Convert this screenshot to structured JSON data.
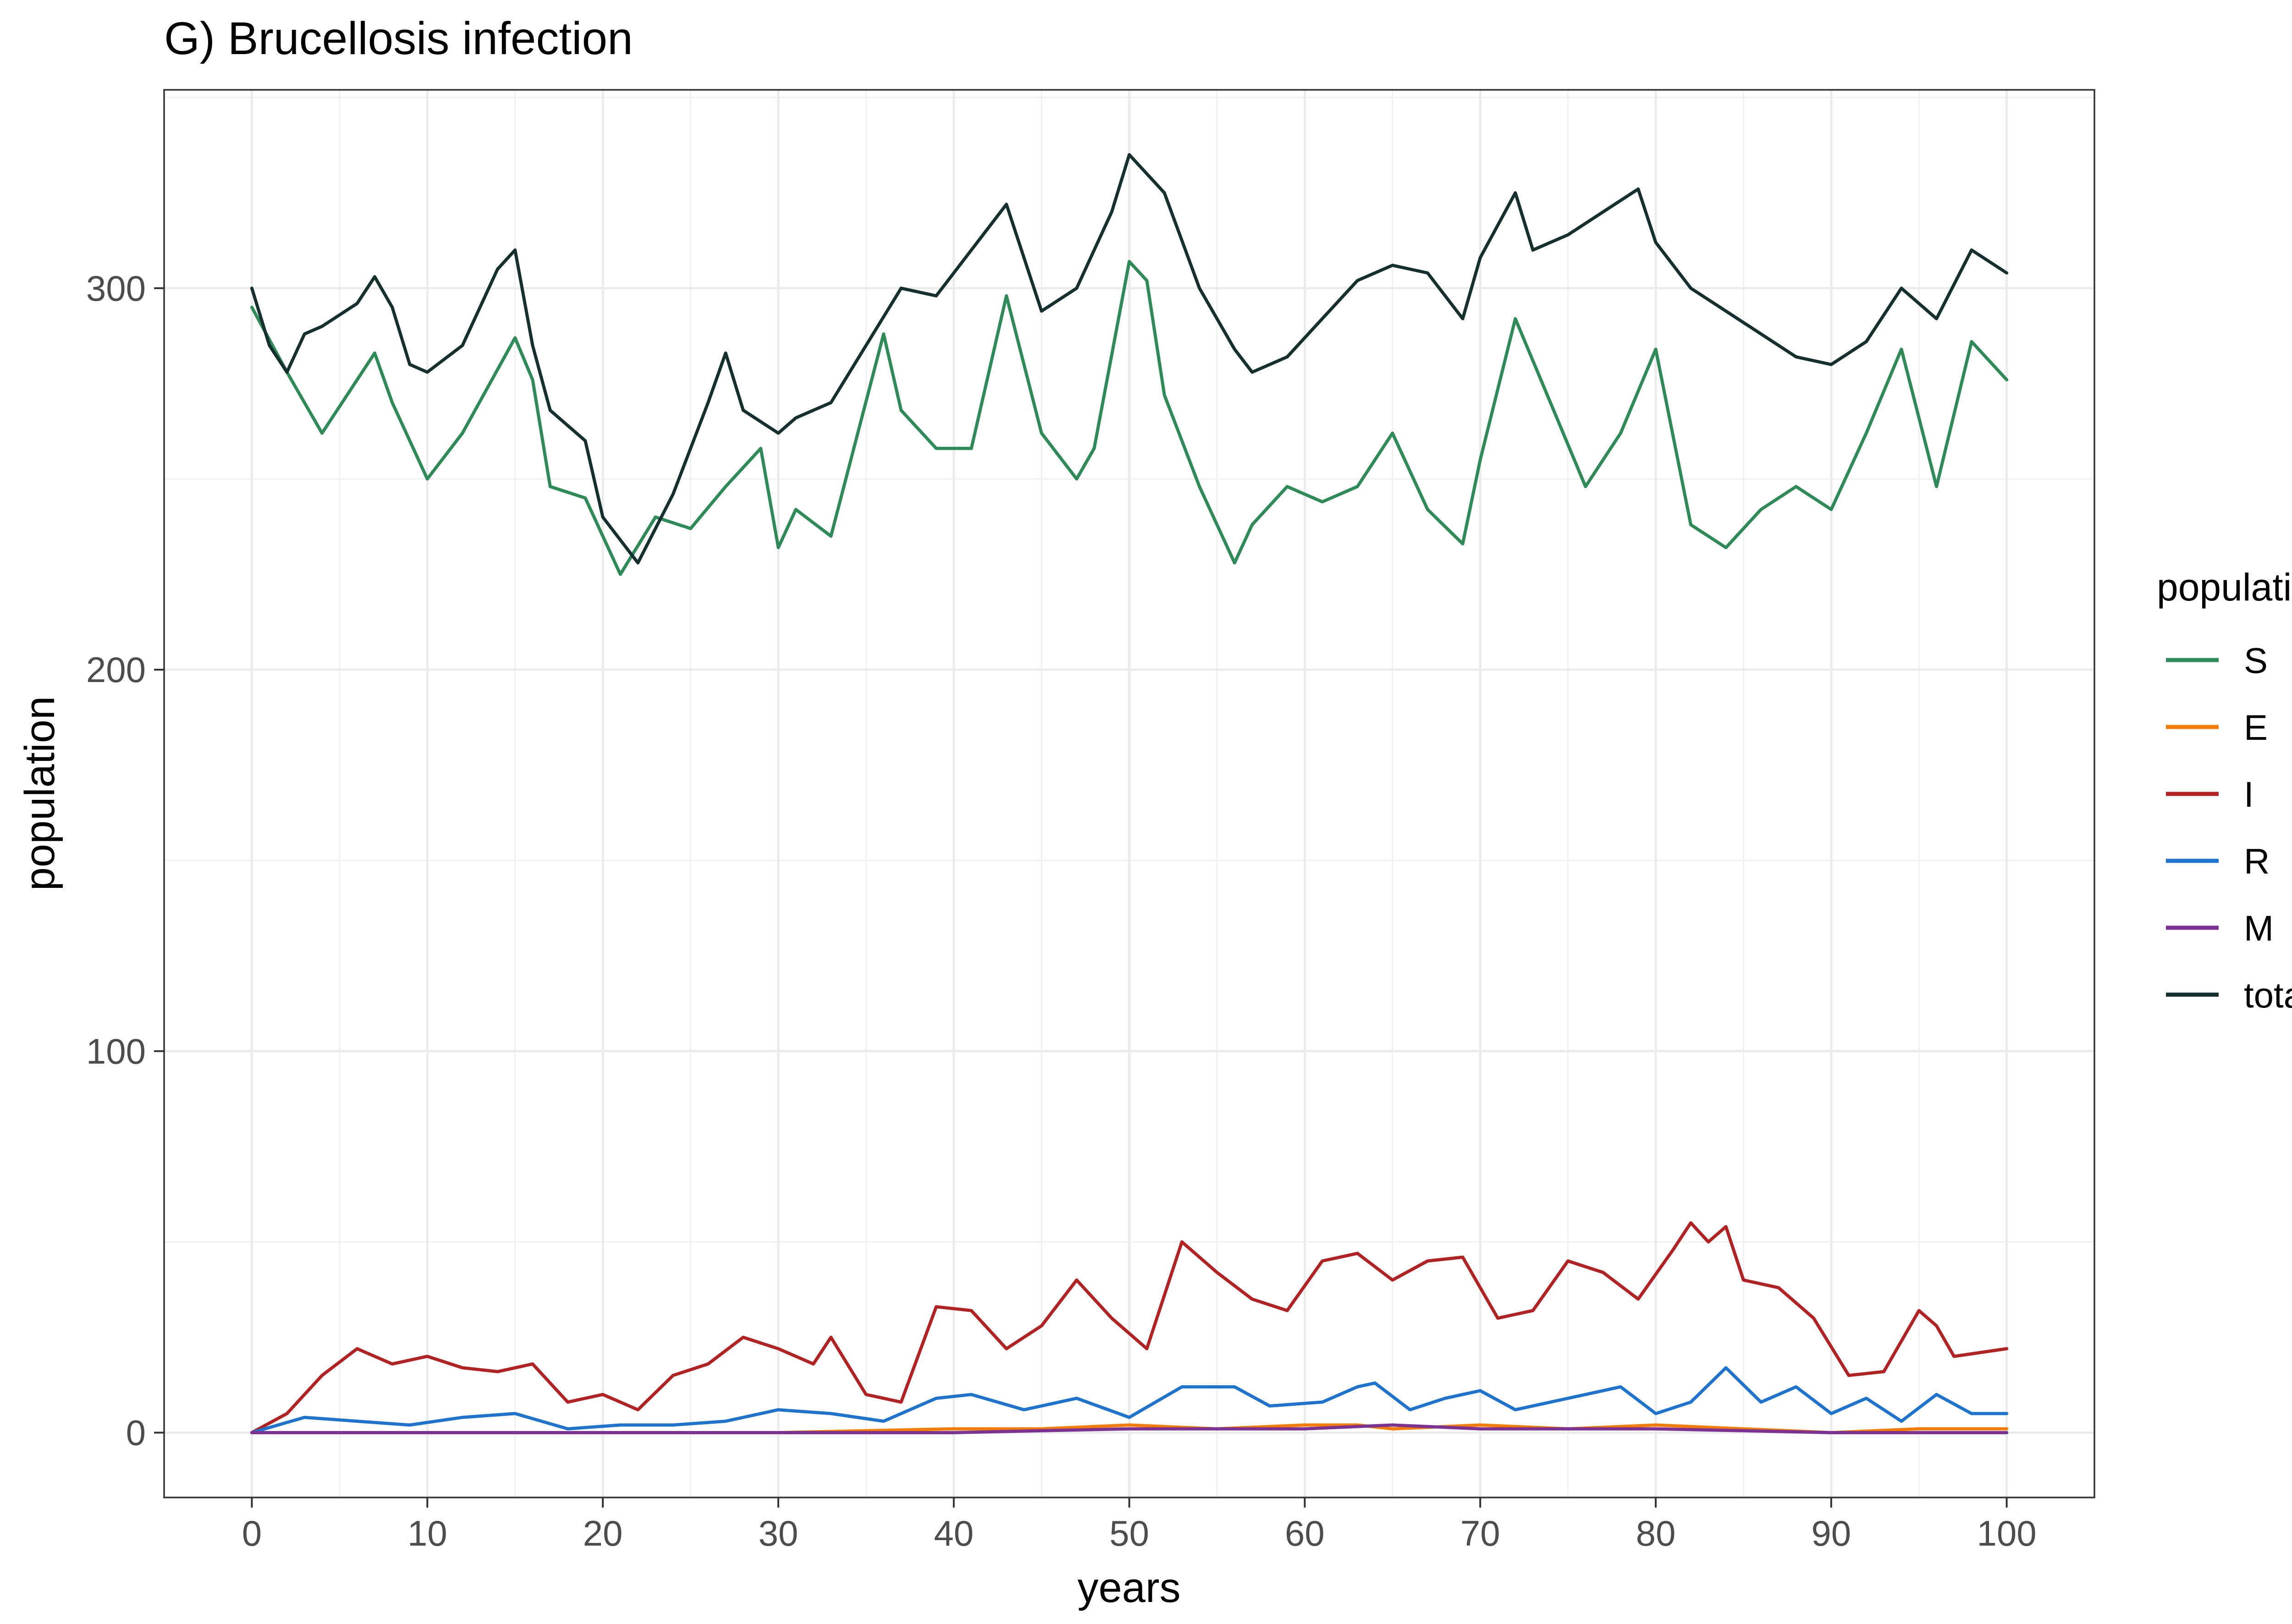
{
  "chart_data": {
    "type": "line",
    "title": "G) Brucellosis infection",
    "xlabel": "years",
    "ylabel": "population",
    "xlim": [
      -5,
      105
    ],
    "ylim": [
      -17,
      352
    ],
    "x_ticks": [
      "0",
      "10",
      "20",
      "30",
      "40",
      "50",
      "60",
      "70",
      "80",
      "90",
      "100"
    ],
    "y_ticks": [
      "0",
      "100",
      "200",
      "300"
    ],
    "grid": true,
    "legend": {
      "title": "population",
      "position": "right"
    },
    "series": [
      {
        "name": "S",
        "color": "#2e8b57",
        "x": [
          0,
          2,
          4,
          7,
          8,
          10,
          12,
          15,
          16,
          17,
          19,
          21,
          23,
          25,
          27,
          29,
          30,
          31,
          33,
          36,
          37,
          39,
          41,
          43,
          45,
          47,
          48,
          50,
          51,
          52,
          54,
          56,
          57,
          59,
          61,
          63,
          65,
          67,
          69,
          70,
          72,
          74,
          76,
          78,
          80,
          82,
          84,
          86,
          88,
          90,
          92,
          94,
          96,
          98,
          100
        ],
        "y": [
          295,
          278,
          262,
          283,
          270,
          250,
          262,
          287,
          276,
          248,
          245,
          225,
          240,
          237,
          248,
          258,
          232,
          242,
          235,
          288,
          268,
          258,
          258,
          298,
          262,
          250,
          258,
          307,
          302,
          272,
          248,
          228,
          238,
          248,
          244,
          248,
          262,
          242,
          233,
          255,
          292,
          270,
          248,
          262,
          284,
          238,
          232,
          242,
          248,
          242,
          262,
          284,
          248,
          286,
          276
        ]
      },
      {
        "name": "E",
        "color": "#f57c00",
        "x": [
          0,
          10,
          20,
          30,
          40,
          45,
          50,
          55,
          60,
          63,
          65,
          70,
          75,
          80,
          85,
          90,
          95,
          100
        ],
        "y": [
          0,
          0,
          0,
          0,
          1,
          1,
          2,
          1,
          2,
          2,
          1,
          2,
          1,
          2,
          1,
          0,
          1,
          1
        ]
      },
      {
        "name": "I",
        "color": "#b22222",
        "x": [
          0,
          2,
          4,
          6,
          8,
          10,
          12,
          14,
          16,
          18,
          20,
          22,
          24,
          26,
          28,
          30,
          32,
          33,
          35,
          37,
          39,
          41,
          43,
          45,
          47,
          49,
          51,
          53,
          55,
          57,
          59,
          61,
          63,
          65,
          67,
          69,
          71,
          73,
          75,
          77,
          79,
          81,
          82,
          83,
          84,
          85,
          87,
          89,
          91,
          93,
          95,
          96,
          97,
          100
        ],
        "y": [
          0,
          5,
          15,
          22,
          18,
          20,
          17,
          16,
          18,
          8,
          10,
          6,
          15,
          18,
          25,
          22,
          18,
          25,
          10,
          8,
          33,
          32,
          22,
          28,
          40,
          30,
          22,
          50,
          42,
          35,
          32,
          45,
          47,
          40,
          45,
          46,
          30,
          32,
          45,
          42,
          35,
          48,
          55,
          50,
          54,
          40,
          38,
          30,
          15,
          16,
          32,
          28,
          20,
          22
        ]
      },
      {
        "name": "R",
        "color": "#1e73cf",
        "x": [
          0,
          3,
          6,
          9,
          12,
          15,
          18,
          21,
          24,
          27,
          30,
          33,
          36,
          39,
          41,
          44,
          47,
          50,
          53,
          56,
          58,
          61,
          63,
          64,
          66,
          68,
          70,
          72,
          74,
          76,
          78,
          80,
          82,
          84,
          86,
          88,
          90,
          92,
          94,
          96,
          98,
          100
        ],
        "y": [
          0,
          4,
          3,
          2,
          4,
          5,
          1,
          2,
          2,
          3,
          6,
          5,
          3,
          9,
          10,
          6,
          9,
          4,
          12,
          12,
          7,
          8,
          12,
          13,
          6,
          9,
          11,
          6,
          8,
          10,
          12,
          5,
          8,
          17,
          8,
          12,
          5,
          9,
          3,
          10,
          5,
          5
        ]
      },
      {
        "name": "M",
        "color": "#7b3294",
        "x": [
          0,
          20,
          40,
          50,
          55,
          60,
          65,
          70,
          80,
          90,
          100
        ],
        "y": [
          0,
          0,
          0,
          1,
          1,
          1,
          2,
          1,
          1,
          0,
          0
        ]
      },
      {
        "name": "total",
        "color": "#15302f",
        "x": [
          0,
          1,
          2,
          3,
          4,
          6,
          7,
          8,
          9,
          10,
          12,
          14,
          15,
          16,
          17,
          19,
          20,
          22,
          24,
          26,
          27,
          28,
          30,
          31,
          33,
          35,
          37,
          39,
          41,
          43,
          45,
          47,
          49,
          50,
          52,
          54,
          56,
          57,
          59,
          61,
          63,
          65,
          67,
          69,
          70,
          72,
          73,
          75,
          77,
          79,
          80,
          82,
          84,
          86,
          88,
          90,
          92,
          94,
          96,
          98,
          100
        ],
        "y": [
          300,
          285,
          278,
          288,
          290,
          296,
          303,
          295,
          280,
          278,
          285,
          305,
          310,
          285,
          268,
          260,
          240,
          228,
          246,
          270,
          283,
          268,
          262,
          266,
          270,
          285,
          300,
          298,
          310,
          322,
          294,
          300,
          320,
          335,
          325,
          300,
          284,
          278,
          282,
          292,
          302,
          306,
          304,
          292,
          308,
          325,
          310,
          314,
          320,
          326,
          312,
          300,
          294,
          288,
          282,
          280,
          286,
          300,
          292,
          310,
          304
        ]
      }
    ]
  }
}
